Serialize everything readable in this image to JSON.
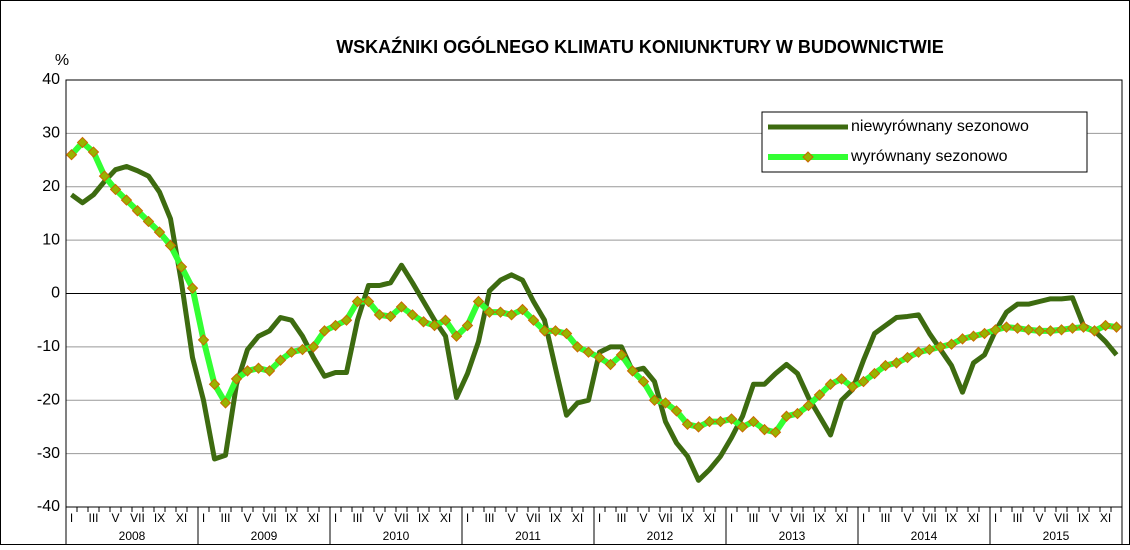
{
  "chart_data": {
    "type": "line",
    "title": "WSKAŹNIKI OGÓLNEGO KLIMATU KONIUNKTURY W BUDOWNICTWIE",
    "y_label": "%",
    "categories": [
      "I",
      null,
      "III",
      null,
      "V",
      null,
      "VII",
      null,
      "IX",
      null,
      "XI",
      null,
      "I",
      null,
      "III",
      null,
      "V",
      null,
      "VII",
      null,
      "IX",
      null,
      "XI",
      null,
      "I",
      null,
      "III",
      null,
      "V",
      null,
      "VII",
      null,
      "IX",
      null,
      "XI",
      null,
      "I",
      null,
      "III",
      null,
      "V",
      null,
      "VII",
      null,
      "IX",
      null,
      "XI",
      null,
      "I",
      null,
      "III",
      null,
      "V",
      null,
      "VII",
      null,
      "IX",
      null,
      "XI",
      null,
      "I",
      null,
      "III",
      null,
      "V",
      null,
      "VII",
      null,
      "IX",
      null,
      "XI",
      null,
      "I",
      null,
      "III",
      null,
      "V",
      null,
      "VII",
      null,
      "IX",
      null,
      "XI",
      null,
      "I",
      null,
      "III",
      null,
      "V",
      null,
      "VII",
      null,
      "IX",
      null,
      "XI",
      null
    ],
    "years": [
      "2008",
      "2009",
      "2010",
      "2011",
      "2012",
      "2013",
      "2014",
      "2015"
    ],
    "series": [
      {
        "name": "niewyrównany sezonowo",
        "color": "#3d6b10",
        "values": [
          18.5,
          17,
          18.5,
          21,
          23.2,
          23.8,
          23,
          22,
          19,
          14,
          2,
          -12,
          -20,
          -31,
          -30.3,
          -17,
          -10.5,
          -8,
          -7,
          -4.5,
          -5,
          -8,
          -12,
          -15.5,
          -14.8,
          -14.8,
          -5,
          1.5,
          1.5,
          2,
          5.3,
          2,
          -1.5,
          -5,
          -8,
          -19.5,
          -15,
          -9,
          0.5,
          2.5,
          3.5,
          2.5,
          -1.5,
          -5,
          -14,
          -22.8,
          -20.5,
          -20,
          -11,
          -10,
          -10,
          -14.5,
          -14,
          -16.5,
          -24,
          -28,
          -30.5,
          -35,
          -33,
          -30.5,
          -27,
          -23,
          -17,
          -17,
          -15,
          -13.3,
          -15,
          -19.5,
          -23,
          -26.5,
          -20,
          -18,
          -12.5,
          -7.5,
          -6,
          -4.5,
          -4.3,
          -4,
          -7.5,
          -10.5,
          -13.5,
          -18.5,
          -13,
          -11.5,
          -7,
          -3.5,
          -2,
          -2,
          -1.5,
          -1,
          -1,
          -0.8,
          -6,
          -7,
          -9,
          -11.5
        ]
      },
      {
        "name": "wyrównany sezonowo",
        "color": "#33ff33",
        "marker_color": "#99b300",
        "marker_edge": "#cc6600",
        "values": [
          26,
          28.3,
          26.5,
          22,
          19.5,
          17.5,
          15.5,
          13.5,
          11.5,
          9,
          5,
          1,
          -8.7,
          -17,
          -20.5,
          -16,
          -14.5,
          -14,
          -14.5,
          -12.5,
          -11,
          -10.5,
          -10,
          -7,
          -6,
          -5,
          -1.5,
          -1.5,
          -4,
          -4.3,
          -2.5,
          -4,
          -5.3,
          -6,
          -5,
          -8,
          -6,
          -1.5,
          -3.5,
          -3.5,
          -4,
          -3,
          -5,
          -7,
          -7,
          -7.5,
          -10,
          -11,
          -12,
          -13.3,
          -11.5,
          -14.5,
          -16.5,
          -20,
          -20.5,
          -22,
          -24.5,
          -25,
          -24,
          -24,
          -23.5,
          -25,
          -24,
          -25.5,
          -26,
          -23,
          -22.5,
          -21,
          -19,
          -17,
          -16,
          -17.5,
          -16.5,
          -15,
          -13.5,
          -13,
          -12,
          -11,
          -10.5,
          -10,
          -9.5,
          -8.5,
          -8,
          -7.5,
          -6.8,
          -6.3,
          -6.5,
          -6.8,
          -7,
          -7,
          -6.8,
          -6.5,
          -6.3,
          -7,
          -6,
          -6.3
        ]
      }
    ],
    "ylim": [
      -40,
      40
    ],
    "yticks": [
      -40,
      -30,
      -20,
      -10,
      0,
      10,
      20,
      30,
      40
    ],
    "grid": true
  }
}
